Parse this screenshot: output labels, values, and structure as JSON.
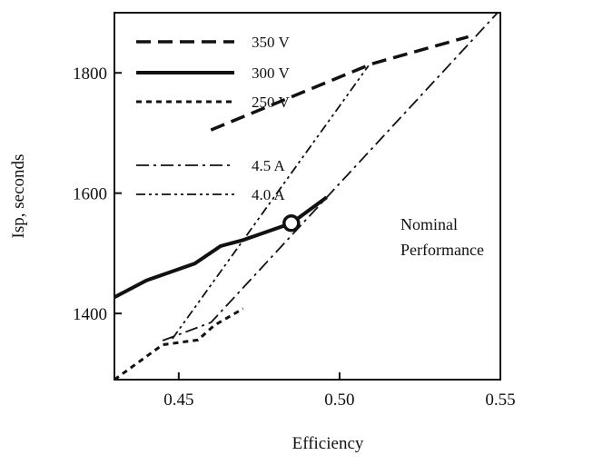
{
  "chart_data": {
    "type": "line",
    "title": "",
    "xlabel": "Efficiency",
    "ylabel": "Isp, seconds",
    "xlim": [
      0.43,
      0.55
    ],
    "ylim": [
      1290,
      1900
    ],
    "xticks": [
      {
        "value": 0.45,
        "label": "0.45"
      },
      {
        "value": 0.5,
        "label": "0.50"
      },
      {
        "value": 0.55,
        "label": "0.55"
      }
    ],
    "yticks": [
      {
        "value": 1400,
        "label": "1400"
      },
      {
        "value": 1600,
        "label": "1600"
      },
      {
        "value": 1800,
        "label": "1800"
      }
    ],
    "grid": false,
    "legend_position": "top-left",
    "series": [
      {
        "name": "350 V",
        "style": "dashed",
        "stroke_width": 3.5,
        "points": [
          [
            0.46,
            1705
          ],
          [
            0.51,
            1815
          ],
          [
            0.54,
            1860
          ]
        ]
      },
      {
        "name": "300 V",
        "style": "solid",
        "stroke_width": 4,
        "points": [
          [
            0.43,
            1427
          ],
          [
            0.44,
            1455
          ],
          [
            0.455,
            1483
          ],
          [
            0.463,
            1512
          ],
          [
            0.47,
            1522
          ],
          [
            0.485,
            1550
          ],
          [
            0.496,
            1593
          ]
        ]
      },
      {
        "name": "250 V",
        "style": "dotted-dash",
        "stroke_width": 3,
        "points": [
          [
            0.43,
            1290
          ],
          [
            0.445,
            1348
          ],
          [
            0.456,
            1356
          ],
          [
            0.461,
            1380
          ],
          [
            0.47,
            1408
          ]
        ]
      },
      {
        "name": "4.5 A",
        "style": "dash-dot",
        "stroke_width": 1.8,
        "points": [
          [
            0.445,
            1355
          ],
          [
            0.46,
            1385
          ],
          [
            0.55,
            1905
          ]
        ]
      },
      {
        "name": "4.0 A",
        "style": "dash-dot-dot",
        "stroke_width": 1.8,
        "points": [
          [
            0.448,
            1358
          ],
          [
            0.509,
            1812
          ]
        ]
      }
    ],
    "annotations": [
      {
        "text": [
          "Nominal",
          "Performance"
        ],
        "marker": "open-circle",
        "at": [
          0.485,
          1550
        ]
      }
    ]
  }
}
